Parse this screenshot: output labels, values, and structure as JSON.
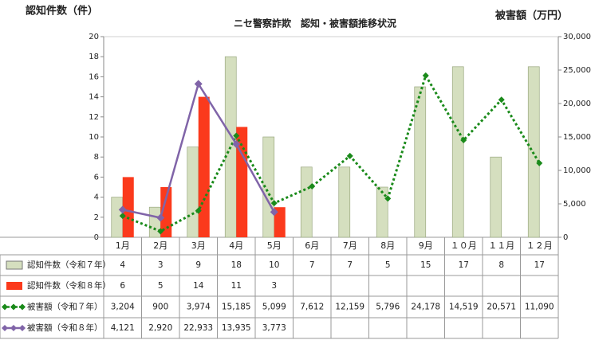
{
  "chart_data": {
    "type": "bar",
    "title": "ニセ警察詐欺　認知・被害額推移状況",
    "y_label": "認知件数（件）",
    "y2_label": "被害額（万円）",
    "categories": [
      "1月",
      "2月",
      "3月",
      "4月",
      "5月",
      "6月",
      "7月",
      "8月",
      "9月",
      "１０月",
      "１１月",
      "１２月"
    ],
    "ylim": [
      0,
      20
    ],
    "yticks": [
      0,
      2,
      4,
      6,
      8,
      10,
      12,
      14,
      16,
      18,
      20
    ],
    "y2lim": [
      0,
      30000
    ],
    "y2ticks": [
      0,
      {
        "value": 5000,
        "label": "5,000"
      },
      {
        "value": 10000,
        "label": "10,000"
      },
      {
        "value": 15000,
        "label": "15,000"
      },
      {
        "value": 20000,
        "label": "20,000"
      },
      {
        "value": 25000,
        "label": "25,000"
      },
      {
        "value": 30000,
        "label": "30,000"
      }
    ],
    "grid": false,
    "series": [
      {
        "name": "認知件数（令和７年）",
        "type": "bar",
        "color": "#d5dfbf",
        "values": [
          4,
          3,
          9,
          18,
          10,
          7,
          7,
          5,
          15,
          17,
          8,
          17
        ]
      },
      {
        "name": "認知件数（令和８年）",
        "type": "bar",
        "color": "#fb3a1c",
        "values": [
          6,
          5,
          14,
          11,
          3,
          null,
          null,
          null,
          null,
          null,
          null,
          null
        ]
      },
      {
        "name": "被害額（令和７年）",
        "type": "line",
        "axis": "y2",
        "color": "#1a8a1a",
        "dashed": true,
        "values": [
          3204,
          900,
          3974,
          15185,
          5099,
          7612,
          12159,
          5796,
          24178,
          14519,
          20571,
          11090
        ],
        "value_labels": [
          "3,204",
          "900",
          "3,974",
          "15,185",
          "5,099",
          "7,612",
          "12,159",
          "5,796",
          "24,178",
          "14,519",
          "20,571",
          "11,090"
        ]
      },
      {
        "name": "被害額（令和８年）",
        "type": "line",
        "axis": "y2",
        "color": "#8064a8",
        "dashed": false,
        "values": [
          4121,
          2920,
          22933,
          13935,
          3773,
          null,
          null,
          null,
          null,
          null,
          null,
          null
        ],
        "value_labels": [
          "4,121",
          "2,920",
          "22,933",
          "13,935",
          "3,773",
          null,
          null,
          null,
          null,
          null,
          null,
          null
        ]
      }
    ]
  }
}
